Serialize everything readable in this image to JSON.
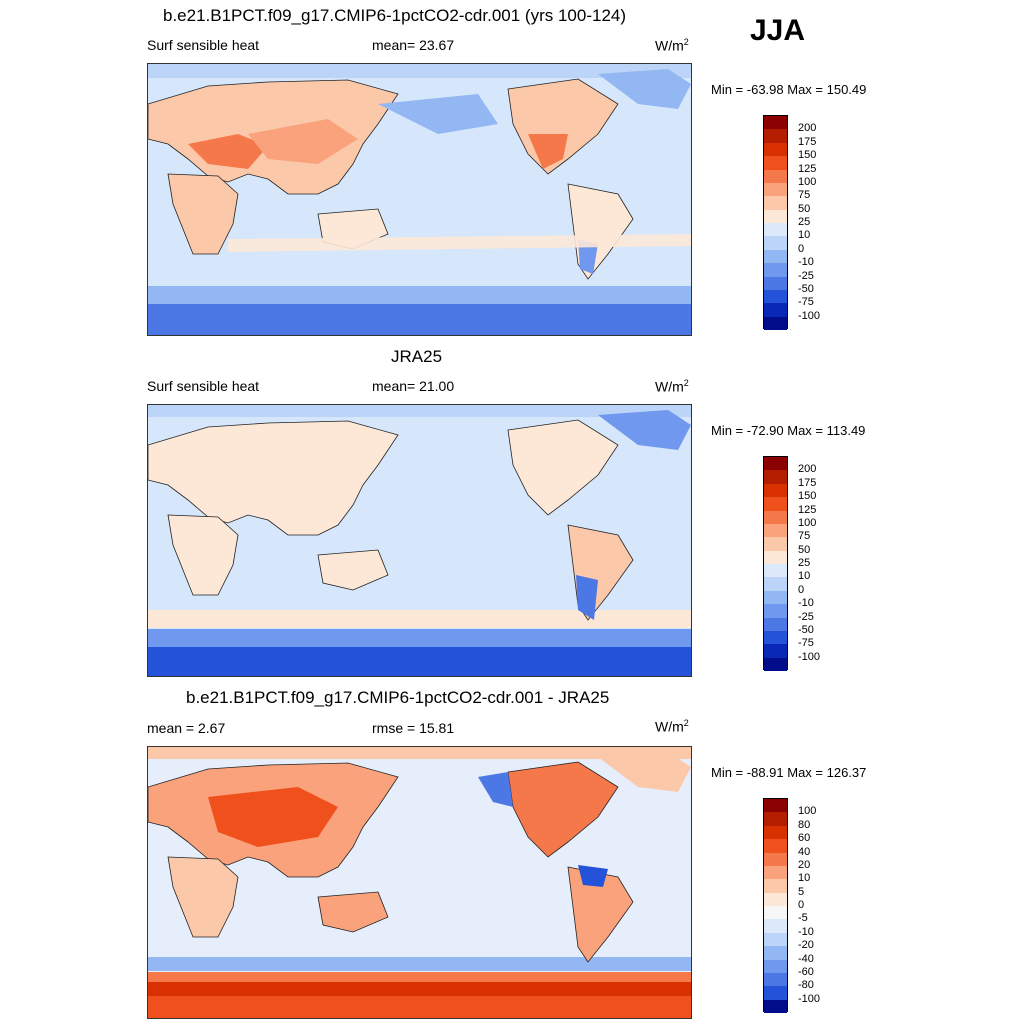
{
  "season": "JJA",
  "panels": [
    {
      "title": "b.e21.B1PCT.f09_g17.CMIP6-1pctCO2-cdr.001 (yrs 100-124)",
      "left_label": "Surf sensible heat",
      "center_label": "mean=  23.67",
      "units": "W/m",
      "units_sup": "2",
      "minmax": "Min = -63.98 Max = 150.49",
      "colorbar": {
        "labels": [
          "200",
          "175",
          "150",
          "125",
          "100",
          "75",
          "50",
          "25",
          "10",
          "0",
          "-10",
          "-25",
          "-50",
          "-75",
          "-100"
        ],
        "colors": [
          "#8b0000",
          "#b51d00",
          "#d93000",
          "#f0501c",
          "#f5784a",
          "#f9a27c",
          "#fcc8aa",
          "#fde8d8",
          "#dbe9fa",
          "#bcd4f7",
          "#93b7f3",
          "#6f98ee",
          "#4c78e6",
          "#2452d8",
          "#0a28b8",
          "#000c8a"
        ]
      },
      "map_base": "#d6e6fb"
    },
    {
      "title": "JRA25",
      "left_label": "Surf sensible heat",
      "center_label": "mean=  21.00",
      "units": "W/m",
      "units_sup": "2",
      "minmax": "Min = -72.90 Max = 113.49",
      "colorbar": {
        "labels": [
          "200",
          "175",
          "150",
          "125",
          "100",
          "75",
          "50",
          "25",
          "10",
          "0",
          "-10",
          "-25",
          "-50",
          "-75",
          "-100"
        ],
        "colors": [
          "#8b0000",
          "#b51d00",
          "#d93000",
          "#f0501c",
          "#f5784a",
          "#f9a27c",
          "#fcc8aa",
          "#fde8d8",
          "#dbe9fa",
          "#bcd4f7",
          "#93b7f3",
          "#6f98ee",
          "#4c78e6",
          "#2452d8",
          "#0a28b8",
          "#000c8a"
        ]
      },
      "map_base": "#d6e6fb"
    },
    {
      "title": "b.e21.B1PCT.f09_g17.CMIP6-1pctCO2-cdr.001 - JRA25",
      "left_label": "mean =   2.67",
      "center_label": "rmse =  15.81",
      "units": "W/m",
      "units_sup": "2",
      "minmax": "Min = -88.91 Max = 126.37",
      "colorbar": {
        "labels": [
          "100",
          "80",
          "60",
          "40",
          "20",
          "10",
          "5",
          "0",
          "-5",
          "-10",
          "-20",
          "-40",
          "-60",
          "-80",
          "-100"
        ],
        "colors": [
          "#8b0000",
          "#b51d00",
          "#d93000",
          "#f0501c",
          "#f5784a",
          "#f9a27c",
          "#fcc8aa",
          "#fde8d8",
          "#f7f7f7",
          "#dbe9fa",
          "#bcd4f7",
          "#93b7f3",
          "#6f98ee",
          "#4c78e6",
          "#2452d8",
          "#000c8a"
        ]
      },
      "map_base": "#e6eefb"
    }
  ]
}
